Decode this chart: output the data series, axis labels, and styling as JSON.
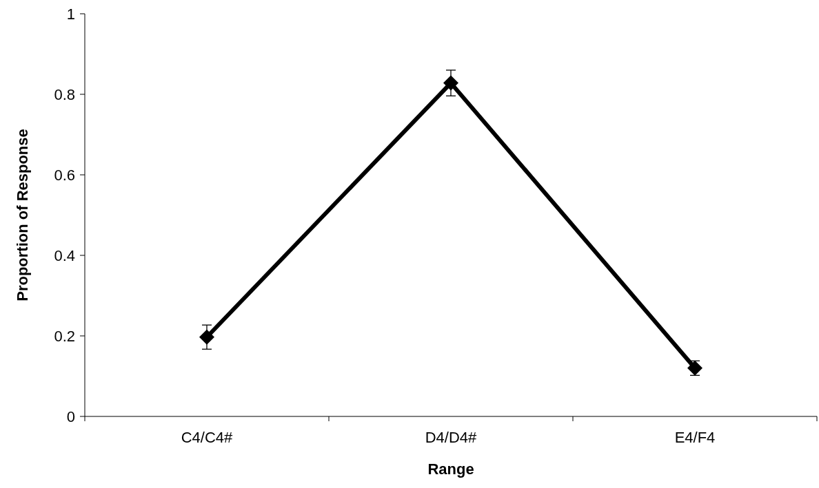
{
  "chart_data": {
    "type": "line",
    "xlabel": "Range",
    "ylabel": "Proportion of Response",
    "categories": [
      "C4/C4#",
      "D4/D4#",
      "E4/F4"
    ],
    "series": [
      {
        "color": "#000000",
        "values": [
          0.197,
          0.828,
          0.12
        ],
        "errors": [
          0.03,
          0.032,
          0.018
        ]
      }
    ],
    "ylim": [
      0,
      1
    ],
    "yticks": [
      0,
      0.2,
      0.4,
      0.6,
      0.8,
      1
    ],
    "grid": false,
    "marker": "diamond",
    "line_style": "solid"
  }
}
